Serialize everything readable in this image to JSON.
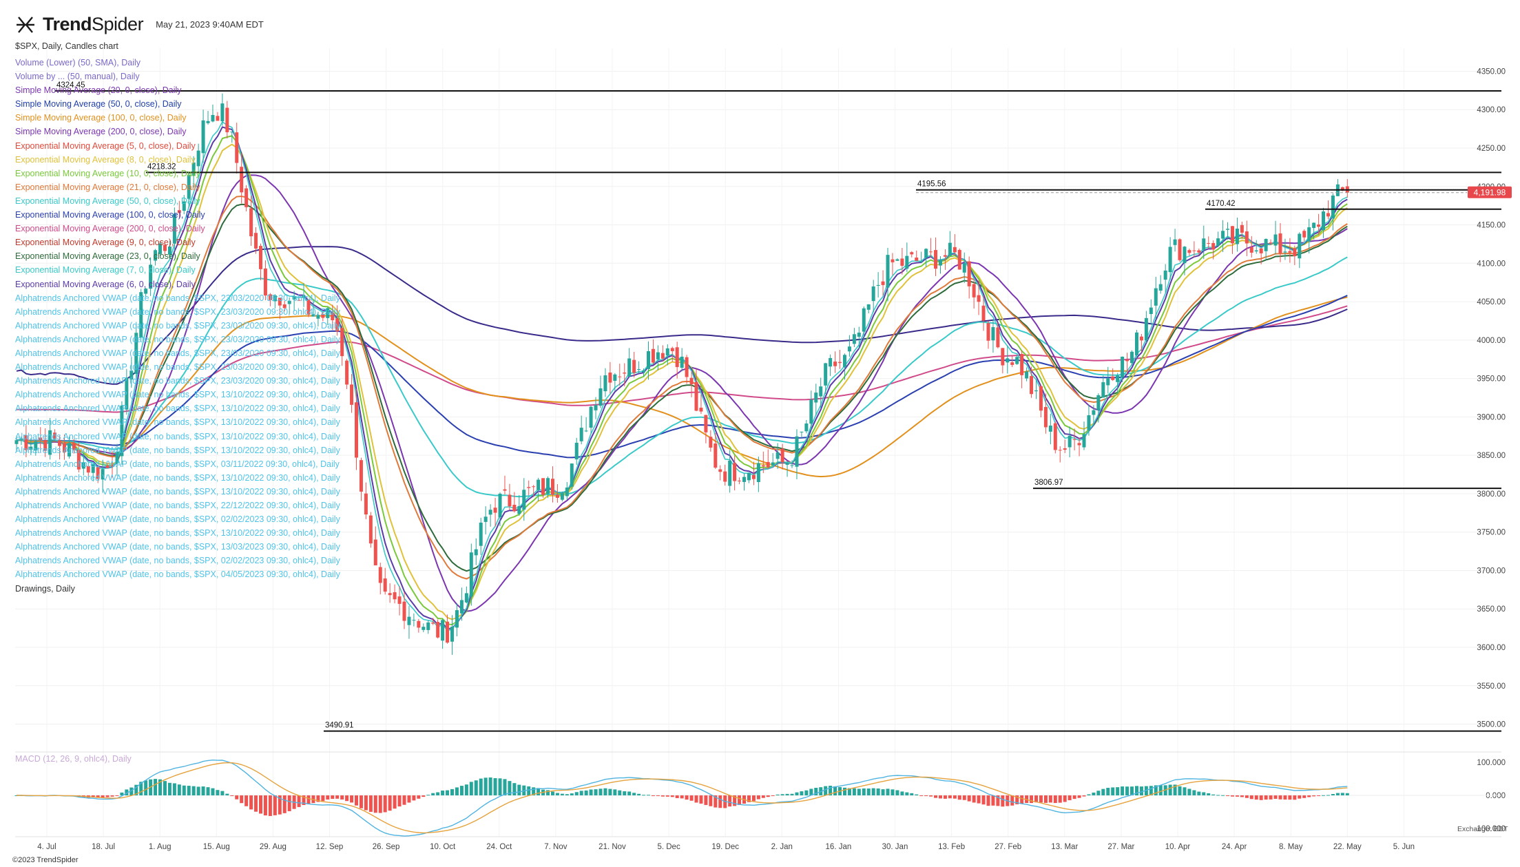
{
  "header": {
    "brand_pre": "Trend",
    "brand_post": "Spider",
    "timestamp": "May 21, 2023 9:40AM EDT",
    "symbol_line": "$SPX, Daily, Candles chart",
    "copyright": "©2023 TrendSpider",
    "exchange": "Exchange: EDT"
  },
  "indicators": [
    {
      "text": "Volume (Lower) (50, SMA), Daily",
      "color": "#7b68c9"
    },
    {
      "text": "Volume by ... (50, manual), Daily",
      "color": "#7b68c9"
    },
    {
      "text": "Simple Moving Average (20, 0, close), Daily",
      "color": "#7b35b0"
    },
    {
      "text": "Simple Moving Average (50, 0, close), Daily",
      "color": "#1e3ea8"
    },
    {
      "text": "Simple Moving Average (100, 0, close), Daily",
      "color": "#e2901c"
    },
    {
      "text": "Simple Moving Average (200, 0, close), Daily",
      "color": "#7b35b0"
    },
    {
      "text": "Exponential Moving Average (5, 0, close), Daily",
      "color": "#e04a3c"
    },
    {
      "text": "Exponential Moving Average (8, 0, close), Daily",
      "color": "#e0c13a"
    },
    {
      "text": "Exponential Moving Average (10, 0, close), Daily",
      "color": "#79c93a"
    },
    {
      "text": "Exponential Moving Average (21, 0, close), Daily",
      "color": "#e07a3a"
    },
    {
      "text": "Exponential Moving Average (50, 0, close), Daily",
      "color": "#3ac9c9"
    },
    {
      "text": "Exponential Moving Average (100, 0, close), Daily",
      "color": "#2a3fb0"
    },
    {
      "text": "Exponential Moving Average (200, 0, close), Daily",
      "color": "#d04a8a"
    },
    {
      "text": "Exponential Moving Average (9, 0, close), Daily",
      "color": "#c0392b"
    },
    {
      "text": "Exponential Moving Average (23, 0, close), Daily",
      "color": "#2e6b3a"
    },
    {
      "text": "Exponential Moving Average (7, 0, close), Daily",
      "color": "#3ac9c9"
    },
    {
      "text": "Exponential Moving Average (6, 0, close), Daily",
      "color": "#5a3aa8"
    },
    {
      "text": "Alphatrends Anchored VWAP (date, no bands, $SPX, 23/03/2020 09:30, ohlc4), Daily",
      "color": "#4fc3e8"
    },
    {
      "text": "Alphatrends Anchored VWAP (date, no bands, $SPX, 23/03/2020 09:30, ohlc4), Daily",
      "color": "#4fc3e8"
    },
    {
      "text": "Alphatrends Anchored VWAP (date, no bands, $SPX, 23/03/2020 09:30, ohlc4), Daily",
      "color": "#4fc3e8"
    },
    {
      "text": "Alphatrends Anchored VWAP (date, no bands, $SPX, 23/03/2020 09:30, ohlc4), Daily",
      "color": "#4fc3e8"
    },
    {
      "text": "Alphatrends Anchored VWAP (date, no bands, $SPX, 23/03/2020 09:30, ohlc4), Daily",
      "color": "#4fc3e8"
    },
    {
      "text": "Alphatrends Anchored VWAP (date, no bands, $SPX, 23/03/2020 09:30, ohlc4), Daily",
      "color": "#4fc3e8"
    },
    {
      "text": "Alphatrends Anchored VWAP (date, no bands, $SPX, 23/03/2020 09:30, ohlc4), Daily",
      "color": "#4fc3e8"
    },
    {
      "text": "Alphatrends Anchored VWAP (date, no bands, $SPX, 13/10/2022 09:30, ohlc4), Daily",
      "color": "#4fc3e8"
    },
    {
      "text": "Alphatrends Anchored VWAP (date, no bands, $SPX, 13/10/2022 09:30, ohlc4), Daily",
      "color": "#4fc3e8"
    },
    {
      "text": "Alphatrends Anchored VWAP (date, no bands, $SPX, 13/10/2022 09:30, ohlc4), Daily",
      "color": "#4fc3e8"
    },
    {
      "text": "Alphatrends Anchored VWAP (date, no bands, $SPX, 13/10/2022 09:30, ohlc4), Daily",
      "color": "#4fc3e8"
    },
    {
      "text": "Alphatrends Anchored VWAP (date, no bands, $SPX, 13/10/2022 09:30, ohlc4), Daily",
      "color": "#4fc3e8"
    },
    {
      "text": "Alphatrends Anchored VWAP (date, no bands, $SPX, 03/11/2022 09:30, ohlc4), Daily",
      "color": "#4fc3e8"
    },
    {
      "text": "Alphatrends Anchored VWAP (date, no bands, $SPX, 13/10/2022 09:30, ohlc4), Daily",
      "color": "#4fc3e8"
    },
    {
      "text": "Alphatrends Anchored VWAP (date, no bands, $SPX, 13/10/2022 09:30, ohlc4), Daily",
      "color": "#4fc3e8"
    },
    {
      "text": "Alphatrends Anchored VWAP (date, no bands, $SPX, 22/12/2022 09:30, ohlc4), Daily",
      "color": "#4fc3e8"
    },
    {
      "text": "Alphatrends Anchored VWAP (date, no bands, $SPX, 02/02/2023 09:30, ohlc4), Daily",
      "color": "#4fc3e8"
    },
    {
      "text": "Alphatrends Anchored VWAP (date, no bands, $SPX, 13/10/2022 09:30, ohlc4), Daily",
      "color": "#4fc3e8"
    },
    {
      "text": "Alphatrends Anchored VWAP (date, no bands, $SPX, 13/03/2023 09:30, ohlc4), Daily",
      "color": "#4fc3e8"
    },
    {
      "text": "Alphatrends Anchored VWAP (date, no bands, $SPX, 02/02/2023 09:30, ohlc4), Daily",
      "color": "#4fc3e8"
    },
    {
      "text": "Alphatrends Anchored VWAP (date, no bands, $SPX, 04/05/2023 09:30, ohlc4), Daily",
      "color": "#4fc3e8"
    },
    {
      "text": "Drawings, Daily",
      "color": "#333333"
    }
  ],
  "macd_label": "MACD (12, 26, 9, ohlc4), Daily",
  "current_price": "4,191.98",
  "chart_data": {
    "type": "candlestick",
    "y_range": [
      3470,
      4380
    ],
    "y_ticks": [
      "3500.00",
      "3550.00",
      "3600.00",
      "3650.00",
      "3700.00",
      "3750.00",
      "3800.00",
      "3850.00",
      "3900.00",
      "3950.00",
      "4000.00",
      "4050.00",
      "4100.00",
      "4150.00",
      "4200.00",
      "4250.00",
      "4300.00",
      "4350.00"
    ],
    "x_labels": [
      "4. Jul",
      "18. Jul",
      "1. Aug",
      "15. Aug",
      "29. Aug",
      "12. Sep",
      "26. Sep",
      "10. Oct",
      "24. Oct",
      "7. Nov",
      "21. Nov",
      "5. Dec",
      "19. Dec",
      "2. Jan",
      "16. Jan",
      "30. Jan",
      "13. Feb",
      "27. Feb",
      "13. Mar",
      "27. Mar",
      "10. Apr",
      "24. Apr",
      "8. May",
      "22. May",
      "5. Jun"
    ],
    "levels": [
      {
        "label": "4324.45",
        "value": 4324.45
      },
      {
        "label": "4218.32",
        "value": 4218.32
      },
      {
        "label": "4195.56",
        "value": 4195.56
      },
      {
        "label": "4170.42",
        "value": 4170.42
      },
      {
        "label": "3806.97",
        "value": 3806.97
      },
      {
        "label": "3490.91",
        "value": 3490.91
      }
    ],
    "close_keypoints": [
      [
        "4. Jul",
        3870
      ],
      [
        "18. Jul",
        3830
      ],
      [
        "1. Aug",
        4120
      ],
      [
        "15. Aug",
        4300
      ],
      [
        "29. Aug",
        4060
      ],
      [
        "12. Sep",
        4030
      ],
      [
        "26. Sep",
        3660
      ],
      [
        "10. Oct",
        3620
      ],
      [
        "24. Oct",
        3790
      ],
      [
        "7. Nov",
        3810
      ],
      [
        "21. Nov",
        3960
      ],
      [
        "5. Dec",
        3990
      ],
      [
        "19. Dec",
        3830
      ],
      [
        "2. Jan",
        3840
      ],
      [
        "16. Jan",
        3970
      ],
      [
        "30. Jan",
        4100
      ],
      [
        "13. Feb",
        4110
      ],
      [
        "27. Feb",
        3980
      ],
      [
        "13. Mar",
        3860
      ],
      [
        "27. Mar",
        3970
      ],
      [
        "10. Apr",
        4120
      ],
      [
        "24. Apr",
        4130
      ],
      [
        "8. May",
        4120
      ],
      [
        "22. May",
        4191.98
      ]
    ],
    "macd": {
      "y_ticks": [
        "100.000",
        "0.000",
        "-100.000"
      ],
      "y_range": [
        -115,
        115
      ]
    }
  }
}
